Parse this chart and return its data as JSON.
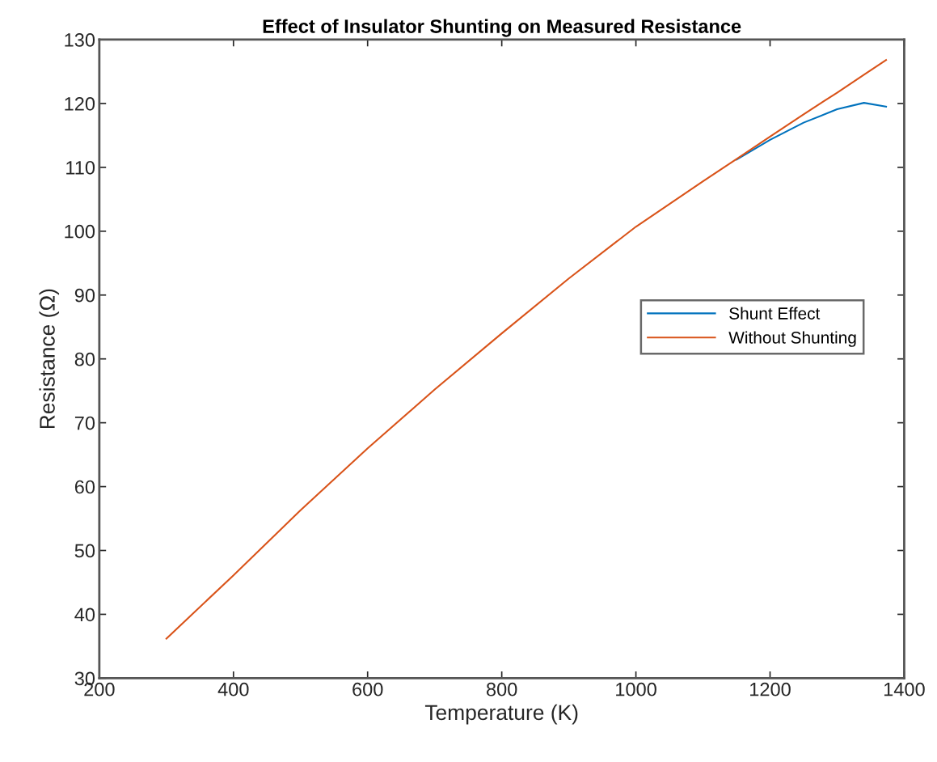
{
  "chart_data": {
    "type": "line",
    "title": "Effect of Insulator Shunting on Measured Resistance",
    "xlabel": "Temperature (K)",
    "ylabel": "Resistance (Ω)",
    "xlim": [
      200,
      1400
    ],
    "xticks": [
      200,
      400,
      600,
      800,
      1000,
      1200,
      1400
    ],
    "ylim": [
      30,
      130
    ],
    "yticks": [
      30,
      40,
      50,
      60,
      70,
      80,
      90,
      100,
      110,
      120,
      130
    ],
    "grid": false,
    "legend": "right",
    "marker": "none",
    "line_style": "solid",
    "series": [
      {
        "name": "Shunt Effect",
        "color": "#0072bd",
        "x": [
          1150,
          1200,
          1250,
          1300,
          1340,
          1373
        ],
        "values": [
          111.2,
          114.3,
          117.0,
          119.1,
          120.1,
          119.5
        ]
      },
      {
        "name": "Without Shunting",
        "color": "#d95319",
        "x": [
          300,
          400,
          500,
          600,
          700,
          800,
          900,
          1000,
          1100,
          1150,
          1200,
          1250,
          1300,
          1340,
          1373
        ],
        "values": [
          36.2,
          46.1,
          56.3,
          66.0,
          75.2,
          84.0,
          92.6,
          100.7,
          107.8,
          111.3,
          114.8,
          118.3,
          121.7,
          124.5,
          126.8
        ]
      }
    ]
  }
}
